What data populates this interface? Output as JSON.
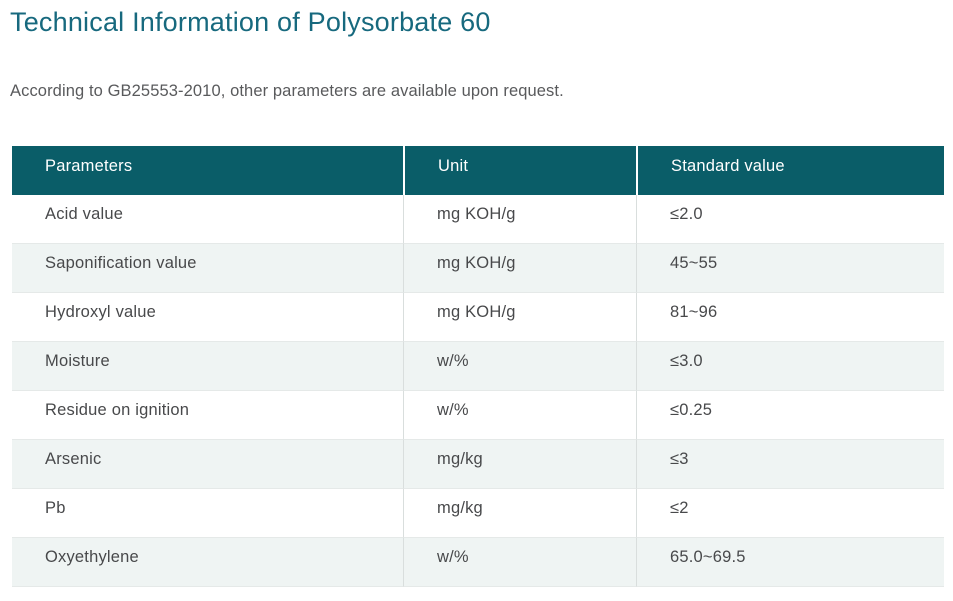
{
  "page": {
    "title": "Technical Information of Polysorbate 60",
    "subtitle": "According to GB25553-2010, other parameters are available upon request."
  },
  "colors": {
    "title_color": "#17697e",
    "subtitle_color": "#595a5c",
    "header_bg": "#0a5d68",
    "header_text": "#ffffff",
    "body_text": "#48494b",
    "row_alt_bg": "#eff4f3",
    "divider": "#d9dedd",
    "row_border": "#e5e9e8"
  },
  "table": {
    "columns": [
      "Parameters",
      "Unit",
      "Standard value"
    ],
    "rows": [
      {
        "parameter": "Acid value",
        "unit": "mg KOH/g",
        "standard_value": "≤2.0"
      },
      {
        "parameter": "Saponification value",
        "unit": "mg KOH/g",
        "standard_value": "45~55"
      },
      {
        "parameter": "Hydroxyl value",
        "unit": "mg KOH/g",
        "standard_value": "81~96"
      },
      {
        "parameter": "Moisture",
        "unit": "w/%",
        "standard_value": "≤3.0"
      },
      {
        "parameter": "Residue on ignition",
        "unit": "w/%",
        "standard_value": "≤0.25"
      },
      {
        "parameter": "Arsenic",
        "unit": "mg/kg",
        "standard_value": "≤3"
      },
      {
        "parameter": "Pb",
        "unit": "mg/kg",
        "standard_value": "≤2"
      },
      {
        "parameter": "Oxyethylene",
        "unit": "w/%",
        "standard_value": "65.0~69.5"
      }
    ]
  }
}
